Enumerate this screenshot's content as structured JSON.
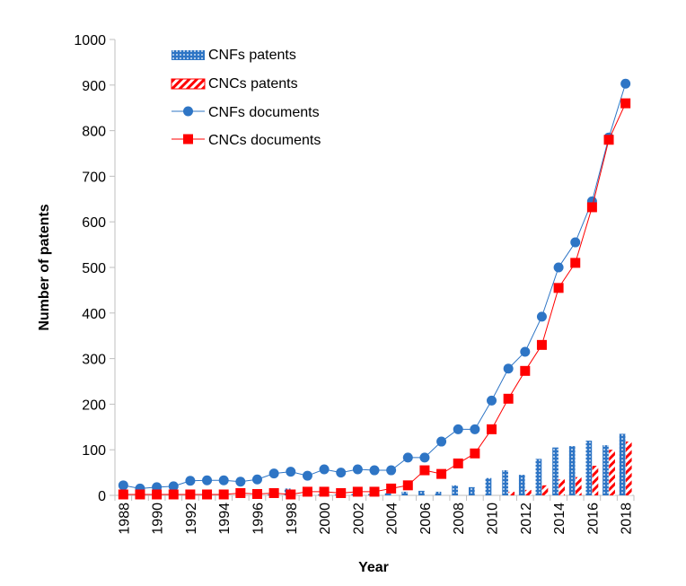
{
  "chart_data": {
    "type": "bar",
    "xlabel": "Year",
    "ylabel": "Number of patents",
    "ylim": [
      0,
      1000
    ],
    "yticks": [
      0,
      100,
      200,
      300,
      400,
      500,
      600,
      700,
      800,
      900,
      1000
    ],
    "categories": [
      1988,
      1989,
      1990,
      1991,
      1992,
      1993,
      1994,
      1995,
      1996,
      1997,
      1998,
      1999,
      2000,
      2001,
      2002,
      2003,
      2004,
      2005,
      2006,
      2007,
      2008,
      2009,
      2010,
      2011,
      2012,
      2013,
      2014,
      2015,
      2016,
      2017,
      2018
    ],
    "xtick_labels": [
      "1988",
      "1990",
      "1992",
      "1994",
      "1996",
      "1998",
      "2000",
      "2002",
      "2004",
      "2006",
      "2008",
      "2010",
      "2012",
      "2014",
      "2016",
      "2018"
    ],
    "legend_position": "top-left",
    "grid": false,
    "series": [
      {
        "name": "CNFs patents",
        "kind": "bar",
        "color": "#2E75C5",
        "pattern": "dotted",
        "values": [
          0,
          0,
          0,
          0,
          0,
          0,
          0,
          0,
          0,
          2,
          15,
          0,
          2,
          2,
          3,
          3,
          5,
          8,
          10,
          8,
          22,
          18,
          38,
          55,
          45,
          80,
          105,
          108,
          120,
          110,
          135
        ]
      },
      {
        "name": "CNCs patents",
        "kind": "bar",
        "color": "#FF0000",
        "pattern": "striped",
        "values": [
          0,
          0,
          0,
          0,
          0,
          0,
          0,
          0,
          0,
          0,
          0,
          0,
          0,
          0,
          0,
          0,
          0,
          0,
          0,
          0,
          0,
          0,
          0,
          8,
          12,
          22,
          35,
          40,
          65,
          100,
          118
        ]
      },
      {
        "name": "CNFs documents",
        "kind": "line",
        "marker": "circle",
        "color": "#2E75C5",
        "values": [
          22,
          15,
          18,
          20,
          32,
          33,
          33,
          30,
          35,
          48,
          52,
          43,
          57,
          50,
          57,
          55,
          55,
          83,
          83,
          118,
          145,
          145,
          208,
          278,
          315,
          392,
          500,
          555,
          645,
          785,
          903
        ]
      },
      {
        "name": "CNCs documents",
        "kind": "line",
        "marker": "square",
        "color": "#FF0000",
        "values": [
          2,
          2,
          2,
          2,
          2,
          2,
          2,
          5,
          3,
          5,
          2,
          8,
          8,
          5,
          8,
          8,
          15,
          22,
          55,
          47,
          70,
          92,
          145,
          212,
          273,
          330,
          455,
          510,
          632,
          780,
          860
        ]
      }
    ]
  }
}
